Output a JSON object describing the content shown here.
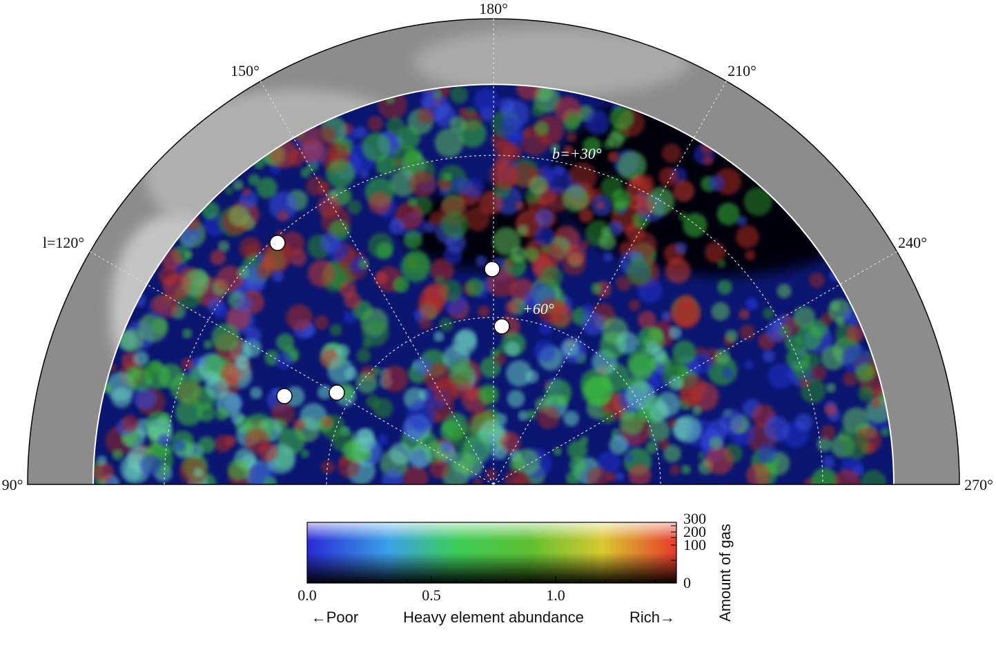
{
  "map": {
    "longitude_labels": [
      "90°",
      "l=120°",
      "150°",
      "180°",
      "210°",
      "240°",
      "270°"
    ],
    "latitude_labels": [
      "b=+30°",
      "+60°"
    ]
  },
  "colorbar": {
    "x_ticks": [
      "0.0",
      "0.5",
      "1.0"
    ],
    "y_ticks": [
      "300",
      "200",
      "100",
      "0"
    ],
    "y_label": "Amount of gas",
    "x_label": "Heavy element abundance",
    "left_note": "←Poor",
    "right_note": "Rich→"
  }
}
